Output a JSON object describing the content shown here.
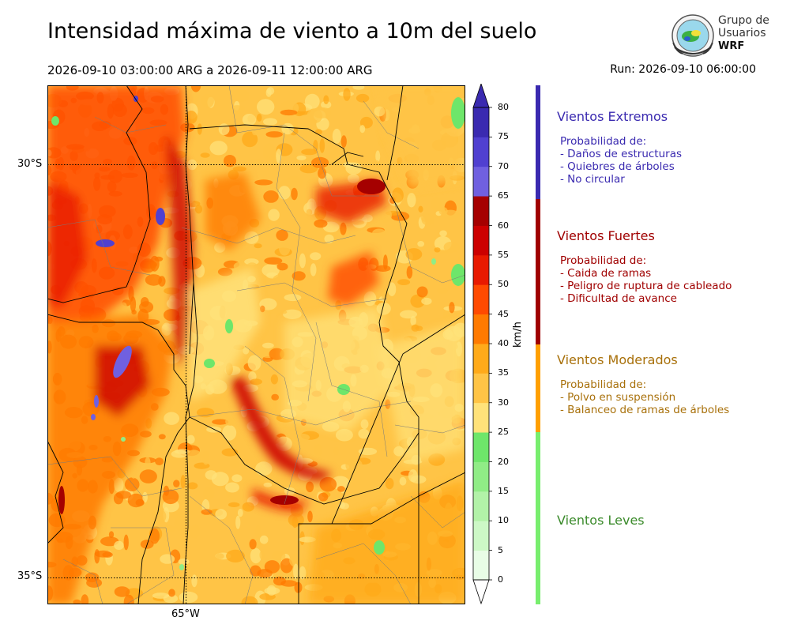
{
  "header": {
    "title": "Intensidad máxima de viento a 10m del suelo",
    "period": "2026-09-10 03:00:00 ARG  a  2026-09-11 12:00:00 ARG",
    "run": "Run: 2026-09-10 06:00:00"
  },
  "logo": {
    "line1": "Grupo de",
    "line2": "Usuarios",
    "line3": "WRF",
    "icon": "globe-seal-icon"
  },
  "map": {
    "lat_labels": [
      "30°S",
      "35°S"
    ],
    "lon_labels": [
      "65°W"
    ]
  },
  "colorbar": {
    "unit": "km/h",
    "ticks": [
      "0",
      "5",
      "10",
      "15",
      "20",
      "25",
      "30",
      "35",
      "40",
      "45",
      "50",
      "55",
      "60",
      "65",
      "70",
      "75",
      "80"
    ],
    "colors": [
      "#e8fde6",
      "#cdf8c6",
      "#b2f2a8",
      "#90ec86",
      "#6ee66a",
      "#ffe27a",
      "#ffc446",
      "#ffaa1a",
      "#ff7a00",
      "#ff4a00",
      "#e81a00",
      "#cc0000",
      "#a50000",
      "#7060e0",
      "#5040d0",
      "#3a2ab0"
    ],
    "extend_color": "#3a2ab0"
  },
  "categories": [
    {
      "name": "Vientos Extremos",
      "color": "#3a2ab0",
      "intro": "Probabilidad de:",
      "items": [
        "- Daños de estructuras",
        "- Quiebres de árboles",
        "- No circular"
      ]
    },
    {
      "name": "Vientos Fuertes",
      "color": "#a00000",
      "intro": "Probabilidad de:",
      "items": [
        "- Caida de ramas",
        "- Peligro de ruptura de cableado",
        "- Dificultad de avance"
      ]
    },
    {
      "name": "Vientos Moderados",
      "color": "#a8700a",
      "intro": "Probabilidad de:",
      "items": [
        "- Polvo en suspensión",
        "- Balanceo de ramas de árboles"
      ]
    },
    {
      "name": "Vientos Leves",
      "color": "#3a8a2a",
      "intro": "",
      "items": []
    }
  ],
  "category_bar_colors": [
    "#3a2ab0",
    "#a00000",
    "#ffa000",
    "#78ee6e"
  ]
}
